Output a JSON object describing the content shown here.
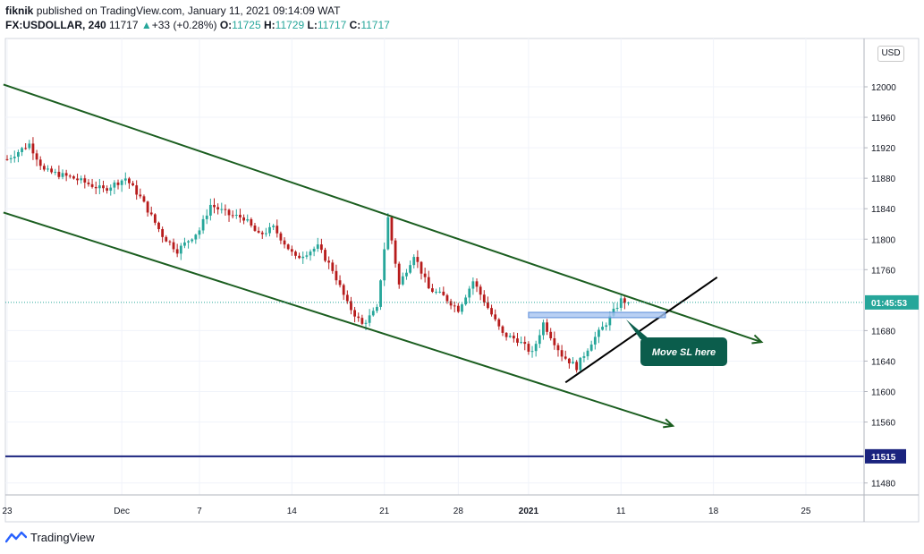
{
  "header": {
    "author": "fiknik",
    "published_text": "published on TradingView.com, January 11, 2021 09:14:09 WAT",
    "symbol": "FX:USDOLLAR, 240",
    "last": "11717",
    "change_arrow": "▲",
    "change": "+33 (+0.28%)",
    "open_label": "O:",
    "open": "11725",
    "high_label": "H:",
    "high": "11729",
    "low_label": "L:",
    "low": "11717",
    "close_label": "C:",
    "close": "11717"
  },
  "currency_button": "USD",
  "footer": {
    "brand": "TradingView",
    "logo_icon": "tradingview-logo-icon"
  },
  "colors": {
    "up": "#26a69a",
    "down": "#b71c1c",
    "channel": "#1b5e20",
    "trend": "#000000",
    "hline": "#1a237e",
    "zone": "#5b8dd9",
    "callout": "#0b5d4c",
    "grid": "#f0f3fa"
  },
  "chart_data": {
    "type": "candlestick",
    "title": "",
    "xlabel": "",
    "ylabel": "",
    "ylim": [
      11450,
      12050
    ],
    "y_ticks": [
      "12000",
      "11960",
      "11920",
      "11880",
      "11840",
      "11800",
      "11760",
      "11680",
      "11640",
      "11600",
      "11560",
      "11480"
    ],
    "x_ticks": [
      {
        "label": "23",
        "bar": 0
      },
      {
        "label": "Dec",
        "bar": 31
      },
      {
        "label": "7",
        "bar": 52
      },
      {
        "label": "14",
        "bar": 77
      },
      {
        "label": "21",
        "bar": 102
      },
      {
        "label": "28",
        "bar": 122
      },
      {
        "label": "2021",
        "bar": 141
      },
      {
        "label": "11",
        "bar": 166
      },
      {
        "label": "18",
        "bar": 191
      },
      {
        "label": "25",
        "bar": 216
      }
    ],
    "last_price_label": "01:45:53",
    "last_price": 11717,
    "horizontal_line": {
      "value": 11515,
      "label": "11515"
    },
    "anchors": [
      [
        0,
        11905
      ],
      [
        6,
        11925
      ],
      [
        10,
        11890
      ],
      [
        18,
        11880
      ],
      [
        26,
        11865
      ],
      [
        32,
        11880
      ],
      [
        36,
        11855
      ],
      [
        42,
        11805
      ],
      [
        46,
        11785
      ],
      [
        52,
        11812
      ],
      [
        55,
        11845
      ],
      [
        60,
        11832
      ],
      [
        64,
        11828
      ],
      [
        68,
        11805
      ],
      [
        72,
        11815
      ],
      [
        78,
        11775
      ],
      [
        84,
        11790
      ],
      [
        88,
        11760
      ],
      [
        92,
        11715
      ],
      [
        96,
        11688
      ],
      [
        100,
        11708
      ],
      [
        103,
        11828
      ],
      [
        106,
        11740
      ],
      [
        110,
        11780
      ],
      [
        114,
        11735
      ],
      [
        118,
        11725
      ],
      [
        122,
        11708
      ],
      [
        126,
        11745
      ],
      [
        130,
        11710
      ],
      [
        134,
        11675
      ],
      [
        138,
        11668
      ],
      [
        142,
        11650
      ],
      [
        145,
        11690
      ],
      [
        150,
        11648
      ],
      [
        154,
        11632
      ],
      [
        158,
        11665
      ],
      [
        162,
        11690
      ],
      [
        166,
        11720
      ],
      [
        168,
        11717
      ]
    ],
    "channel_upper": [
      {
        "bar": -1,
        "value": 12003
      },
      {
        "bar": 204,
        "value": 11665
      }
    ],
    "channel_lower": [
      {
        "bar": -1,
        "value": 11835
      },
      {
        "bar": 180,
        "value": 11555
      }
    ],
    "trendline": [
      {
        "bar": 151,
        "value": 11612
      },
      {
        "bar": 192,
        "value": 11750
      }
    ],
    "zone": {
      "from_bar": 141,
      "to_bar": 178,
      "low": 11697,
      "high": 11704
    },
    "annotation": "Move SL here"
  }
}
